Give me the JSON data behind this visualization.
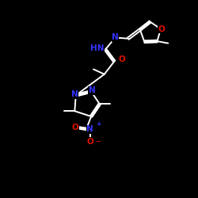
{
  "background": "#000000",
  "bond_color": "#ffffff",
  "N_color": "#3333ff",
  "O_color": "#dd1100",
  "figsize": [
    2.5,
    2.5
  ],
  "dpi": 100,
  "xlim": [
    0,
    10
  ],
  "ylim": [
    0,
    10
  ]
}
